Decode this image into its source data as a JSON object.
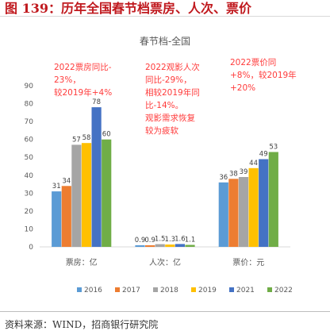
{
  "figure_title": "图 139：历年全国春节档票房、人次、票价",
  "source": "资料来源：WIND，招商银行研究院",
  "colors": {
    "title": "#c0191e",
    "annotation": "#ff3b3b",
    "axis_text": "#595959",
    "series": [
      "#5b9bd5",
      "#ed7d31",
      "#a5a5a5",
      "#ffc000",
      "#4472c4",
      "#70ad47"
    ]
  },
  "annotations": [
    [
      "2022票房同比-",
      "23%，",
      "较2019年+4%"
    ],
    [
      "2022观影人次",
      "同比-29%，",
      "相较2019年同",
      "比-14%。",
      "观影需求恢复",
      "较为疲软"
    ],
    [
      "2022票价同",
      "+8%，较2019年",
      "+20%"
    ]
  ],
  "chart_data": {
    "type": "bar",
    "title": "春节档-全国",
    "categories": [
      "票房：亿",
      "人次：亿",
      "票价：元"
    ],
    "ylim": [
      0,
      90
    ],
    "yticks": [
      0,
      10,
      20,
      30,
      40,
      50,
      60,
      70,
      80,
      90
    ],
    "grid": false,
    "legend_position": "bottom",
    "series": [
      {
        "name": "2016",
        "values": [
          31,
          0.9,
          36
        ],
        "labels": [
          "31",
          "0.9",
          "36"
        ]
      },
      {
        "name": "2017",
        "values": [
          34,
          0.9,
          38
        ],
        "labels": [
          "34",
          "0.9",
          "38"
        ]
      },
      {
        "name": "2018",
        "values": [
          57,
          1.5,
          39
        ],
        "labels": [
          "57",
          "1.5",
          "39"
        ]
      },
      {
        "name": "2019",
        "values": [
          58,
          1.3,
          44
        ],
        "labels": [
          "58",
          "1.3",
          "44"
        ]
      },
      {
        "name": "2021",
        "values": [
          78,
          1.6,
          49
        ],
        "labels": [
          "78",
          "1.6",
          "49"
        ]
      },
      {
        "name": "2022",
        "values": [
          60,
          1.1,
          53
        ],
        "labels": [
          "60",
          "1.1",
          "53"
        ]
      }
    ]
  }
}
